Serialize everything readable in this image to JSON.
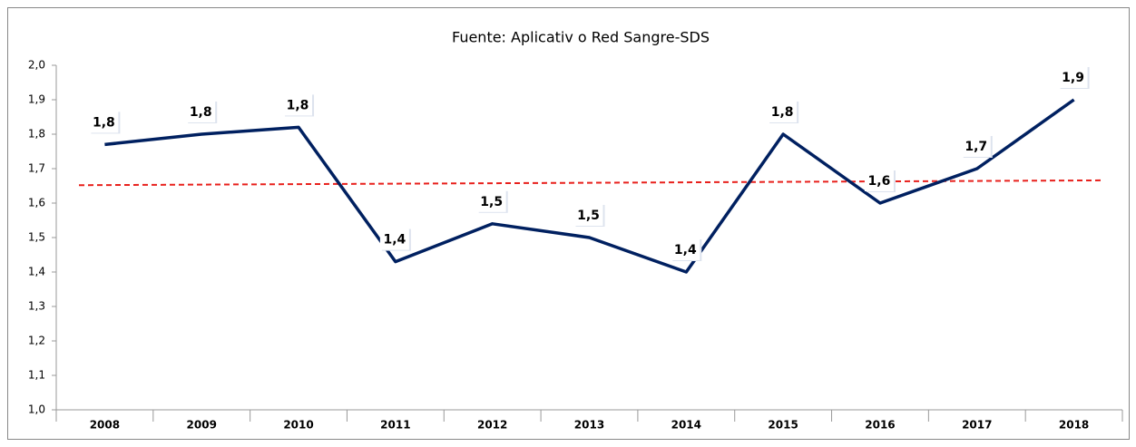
{
  "chart_data": {
    "type": "line",
    "title": "Fuente: Aplicativ o Red Sangre-SDS",
    "categories": [
      "2008",
      "2009",
      "2010",
      "2011",
      "2012",
      "2013",
      "2014",
      "2015",
      "2016",
      "2017",
      "2018"
    ],
    "series": [
      {
        "color": "#002060",
        "values": [
          1.77,
          1.8,
          1.82,
          1.43,
          1.54,
          1.5,
          1.4,
          1.8,
          1.6,
          1.7,
          1.9
        ],
        "value_labels": [
          "1,8",
          "1,8",
          "1,8",
          "1,4",
          "1,5",
          "1,5",
          "1,4",
          "1,8",
          "1,6",
          "1,7",
          "1,9"
        ]
      }
    ],
    "trendline": {
      "color": "#e8201c",
      "values": [
        1.652,
        1.666
      ]
    },
    "ylim": [
      1.0,
      2.0
    ],
    "yticks": [
      {
        "value": 1.0,
        "label": "1,0"
      },
      {
        "value": 1.1,
        "label": "1,1"
      },
      {
        "value": 1.2,
        "label": "1,2"
      },
      {
        "value": 1.3,
        "label": "1,3"
      },
      {
        "value": 1.4,
        "label": "1,4"
      },
      {
        "value": 1.5,
        "label": "1,5"
      },
      {
        "value": 1.6,
        "label": "1,6"
      },
      {
        "value": 1.7,
        "label": "1,7"
      },
      {
        "value": 1.8,
        "label": "1,8"
      },
      {
        "value": 1.9,
        "label": "1,9"
      },
      {
        "value": 2.0,
        "label": "2,0"
      }
    ]
  }
}
